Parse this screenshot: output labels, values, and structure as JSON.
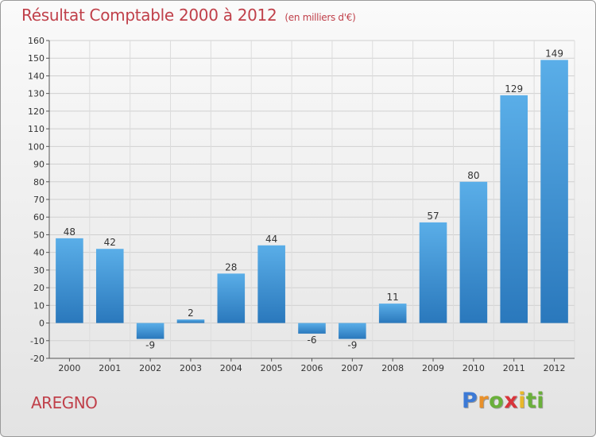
{
  "header": {
    "title": "Résultat Comptable 2000 à 2012",
    "unit": "(en milliers d'€)"
  },
  "commune": "AREGNO",
  "logo": {
    "text": "Proxiti",
    "letters": [
      "P",
      "r",
      "o",
      "x",
      "i",
      "ti"
    ]
  },
  "colors": {
    "title": "#c0404a",
    "bar_light": "#5aaee8",
    "bar_dark": "#2a78bc",
    "grid": "#d0d0d0"
  },
  "chart_data": {
    "type": "bar",
    "categories": [
      "2000",
      "2001",
      "2002",
      "2003",
      "2004",
      "2005",
      "2006",
      "2007",
      "2008",
      "2009",
      "2010",
      "2011",
      "2012"
    ],
    "values": [
      48,
      42,
      -9,
      2,
      28,
      44,
      -6,
      -9,
      11,
      57,
      80,
      129,
      149
    ],
    "data_labels": [
      "48",
      "42",
      "-9",
      "2",
      "28",
      "44",
      "-6",
      "-9",
      "11",
      "57",
      "80",
      "129",
      "149"
    ],
    "yticks": [
      "-20",
      "-10",
      "0",
      "10",
      "20",
      "30",
      "40",
      "50",
      "60",
      "70",
      "80",
      "90",
      "100",
      "110",
      "120",
      "130",
      "140",
      "150",
      "160"
    ],
    "ylim": [
      -20,
      160
    ],
    "grid": true,
    "title": "Résultat Comptable 2000 à 2012",
    "xlabel": "",
    "ylabel": ""
  }
}
